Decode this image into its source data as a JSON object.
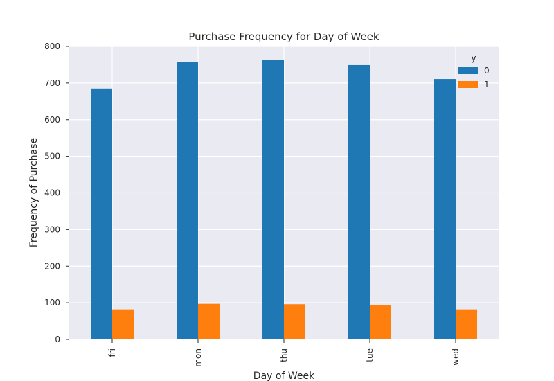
{
  "chart_data": {
    "type": "bar",
    "title": "Purchase Frequency for Day of Week",
    "xlabel": "Day of Week",
    "ylabel": "Frequency of Purchase",
    "categories": [
      "fri",
      "mon",
      "thu",
      "tue",
      "wed"
    ],
    "series": [
      {
        "name": "0",
        "values": [
          685,
          757,
          764,
          749,
          711
        ],
        "color": "#1f77b4"
      },
      {
        "name": "1",
        "values": [
          82,
          97,
          96,
          93,
          82
        ],
        "color": "#ff7f0e"
      }
    ],
    "ylim": [
      0,
      800
    ],
    "yticks": [
      0,
      100,
      200,
      300,
      400,
      500,
      600,
      700,
      800
    ],
    "legend_title": "y",
    "legend_position": "top-right",
    "grid": true,
    "background_color": "#eaeaf2",
    "grid_color": "#ffffff"
  }
}
